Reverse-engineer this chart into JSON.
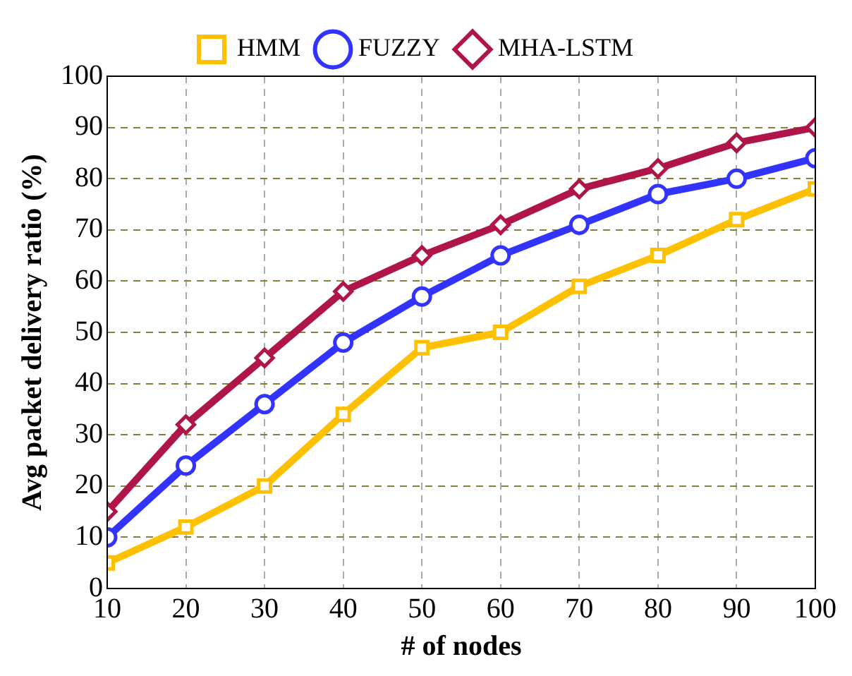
{
  "chart_data": {
    "type": "line",
    "xlabel": "# of nodes",
    "ylabel": "Avg packet delivery ratio (%)",
    "x": [
      10,
      20,
      30,
      40,
      50,
      60,
      70,
      80,
      90,
      100
    ],
    "xlim": [
      10,
      100
    ],
    "xticks": [
      10,
      20,
      30,
      40,
      50,
      60,
      70,
      80,
      90,
      100
    ],
    "ylim": [
      0,
      100
    ],
    "yticks": [
      0,
      10,
      20,
      30,
      40,
      50,
      60,
      70,
      80,
      90,
      100
    ],
    "grid": true,
    "legend": "top",
    "line_style": "solid",
    "series": [
      {
        "name": "HMM",
        "color": "#ffc000",
        "marker": "square",
        "values": [
          5,
          12,
          20,
          34,
          47,
          50,
          59,
          65,
          72,
          78
        ]
      },
      {
        "name": "FUZZY",
        "color": "#3333ff",
        "marker": "circle",
        "values": [
          10,
          24,
          36,
          48,
          57,
          65,
          71,
          77,
          80,
          84
        ]
      },
      {
        "name": "MHA-LSTM",
        "color": "#b0154a",
        "marker": "diamond",
        "values": [
          15,
          32,
          45,
          58,
          65,
          71,
          78,
          82,
          87,
          90
        ]
      }
    ]
  }
}
